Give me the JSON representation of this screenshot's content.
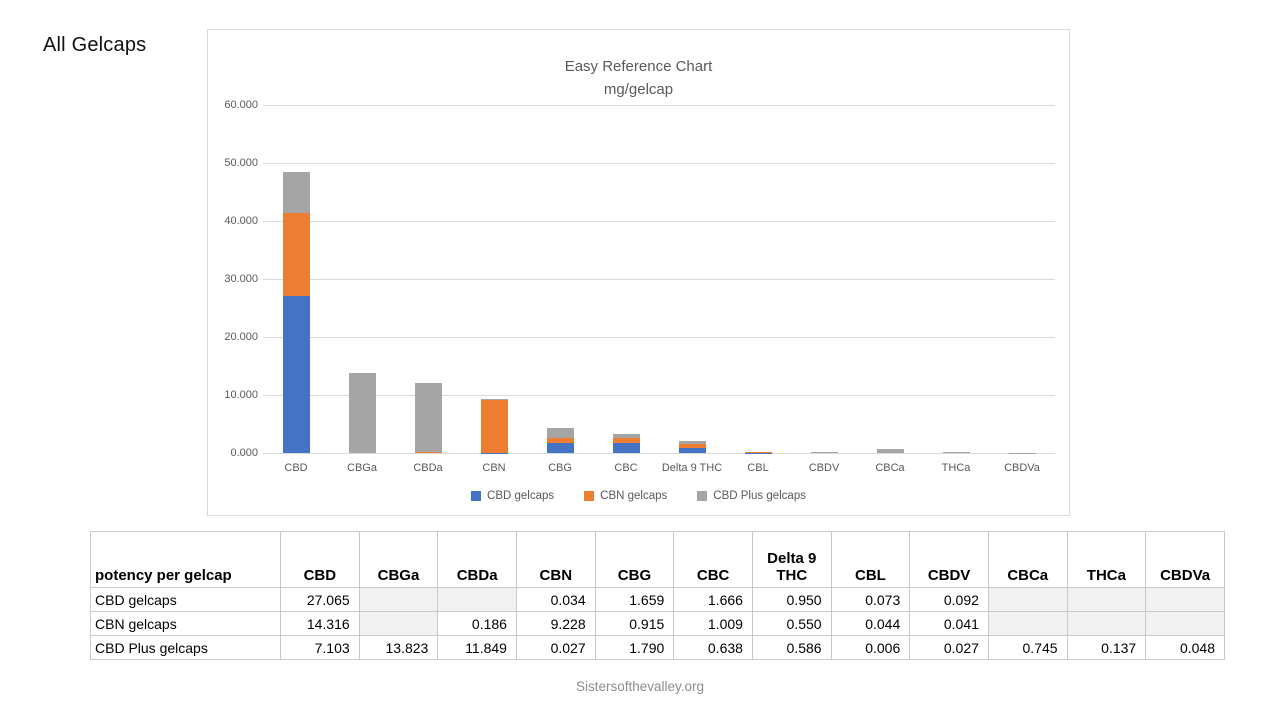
{
  "page": {
    "title": "All Gelcaps",
    "footer": "Sistersofthevalley.org"
  },
  "chart_data": {
    "type": "bar",
    "stacked": true,
    "title": "Easy Reference Chart",
    "subtitle": "mg/gelcap",
    "categories": [
      "CBD",
      "CBGa",
      "CBDa",
      "CBN",
      "CBG",
      "CBC",
      "Delta 9 THC",
      "CBL",
      "CBDV",
      "CBCa",
      "THCa",
      "CBDVa"
    ],
    "series": [
      {
        "name": "CBD gelcaps",
        "color": "#4472C4",
        "values": [
          27.065,
          0,
          0,
          0.034,
          1.659,
          1.666,
          0.95,
          0.073,
          0.092,
          0,
          0,
          0
        ]
      },
      {
        "name": "CBN gelcaps",
        "color": "#ED7D31",
        "values": [
          14.316,
          0,
          0.186,
          9.228,
          0.915,
          1.009,
          0.55,
          0.044,
          0.041,
          0,
          0,
          0
        ]
      },
      {
        "name": "CBD Plus gelcaps",
        "color": "#A5A5A5",
        "values": [
          7.103,
          13.823,
          11.849,
          0.027,
          1.79,
          0.638,
          0.586,
          0.006,
          0.027,
          0.745,
          0.137,
          0.048
        ]
      }
    ],
    "ylim": [
      0,
      60
    ],
    "yticks": [
      "0.000",
      "10.000",
      "20.000",
      "30.000",
      "40.000",
      "50.000",
      "60.000"
    ],
    "grid": true,
    "legend_position": "bottom"
  },
  "table": {
    "header_label": "potency per gelcap",
    "columns": [
      "CBD",
      "CBGa",
      "CBDa",
      "CBN",
      "CBG",
      "CBC",
      "Delta 9 THC",
      "CBL",
      "CBDV",
      "CBCa",
      "THCa",
      "CBDVa"
    ],
    "rows": [
      {
        "label": "CBD gelcaps",
        "values": [
          "27.065",
          "",
          "",
          "0.034",
          "1.659",
          "1.666",
          "0.950",
          "0.073",
          "0.092",
          "",
          "",
          ""
        ]
      },
      {
        "label": "CBN gelcaps",
        "values": [
          "14.316",
          "",
          "0.186",
          "9.228",
          "0.915",
          "1.009",
          "0.550",
          "0.044",
          "0.041",
          "",
          "",
          ""
        ]
      },
      {
        "label": "CBD Plus gelcaps",
        "values": [
          "7.103",
          "13.823",
          "11.849",
          "0.027",
          "1.790",
          "0.638",
          "0.586",
          "0.006",
          "0.027",
          "0.745",
          "0.137",
          "0.048"
        ]
      }
    ]
  },
  "colors": {
    "series_blue": "#4472C4",
    "series_orange": "#ED7D31",
    "series_gray": "#A5A5A5",
    "axis_text": "#595959",
    "gridline": "#d9d9d9",
    "blank_cell": "#f1f1f1"
  }
}
